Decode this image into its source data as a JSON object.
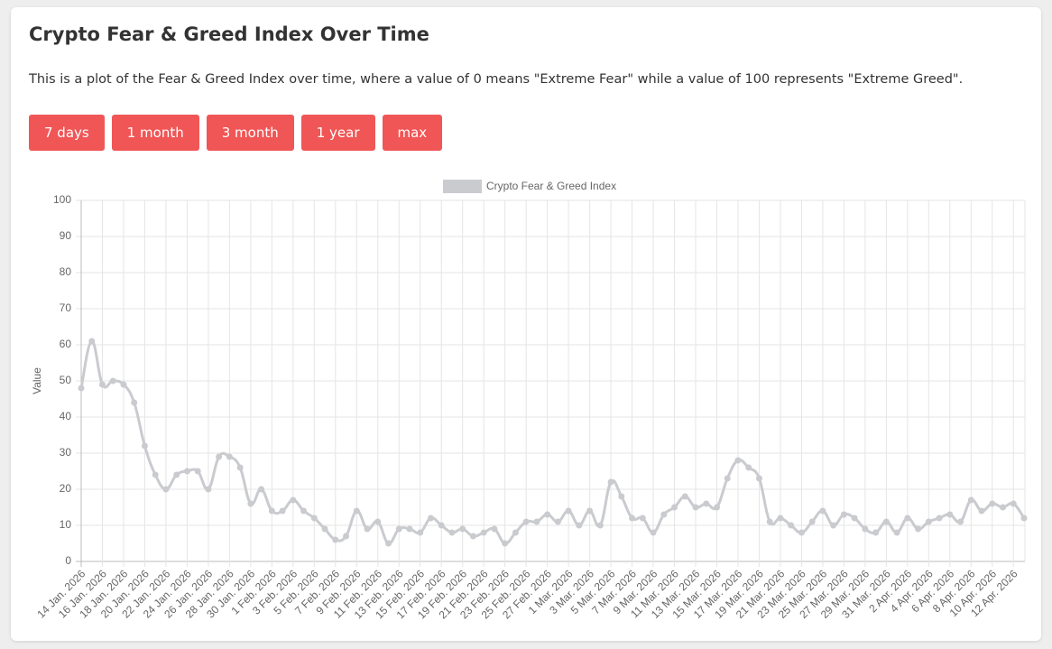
{
  "header": {
    "title": "Crypto Fear & Greed Index Over Time",
    "description": "This is a plot of the Fear & Greed Index over time, where a value of 0 means \"Extreme Fear\" while a value of 100 represents \"Extreme Greed\"."
  },
  "buttons": [
    "7 days",
    "1 month",
    "3 month",
    "1 year",
    "max"
  ],
  "chart_data": {
    "type": "line",
    "y_label": "Value",
    "categories": [
      "14 Jan. 2026",
      null,
      "16 Jan. 2026",
      null,
      "18 Jan. 2026",
      null,
      "20 Jan. 2026",
      null,
      "22 Jan. 2026",
      null,
      "24 Jan. 2026",
      null,
      "26 Jan. 2026",
      null,
      "28 Jan. 2026",
      null,
      "30 Jan. 2026",
      null,
      "1 Feb. 2026",
      null,
      "3 Feb. 2026",
      null,
      "5 Feb. 2026",
      null,
      "7 Feb. 2026",
      null,
      "9 Feb. 2026",
      null,
      "11 Feb. 2026",
      null,
      "13 Feb. 2026",
      null,
      "15 Feb. 2026",
      null,
      "17 Feb. 2026",
      null,
      "19 Feb. 2026",
      null,
      "21 Feb. 2026",
      null,
      "23 Feb. 2026",
      null,
      "25 Feb. 2026",
      null,
      "27 Feb. 2026",
      null,
      "1 Mar. 2026",
      null,
      "3 Mar. 2026",
      null,
      "5 Mar. 2026",
      null,
      "7 Mar. 2026",
      null,
      "9 Mar. 2026",
      null,
      "11 Mar. 2026",
      null,
      "13 Mar. 2026",
      null,
      "15 Mar. 2026",
      null,
      "17 Mar. 2026",
      null,
      "19 Mar. 2026",
      null,
      "21 Mar. 2026",
      null,
      "23 Mar. 2026",
      null,
      "25 Mar. 2026",
      null,
      "27 Mar. 2026",
      null,
      "29 Mar. 2026",
      null,
      "31 Mar. 2026",
      null,
      "2 Apr. 2026",
      null,
      "4 Apr. 2026",
      null,
      "6 Apr. 2026",
      null,
      "8 Apr. 2026",
      null,
      "10 Apr. 2026",
      null,
      "12 Apr. 2026",
      null
    ],
    "series": [
      {
        "name": "Crypto Fear & Greed Index",
        "color": "#c9cbcf",
        "values": [
          48,
          61,
          49,
          50,
          49,
          44,
          32,
          24,
          20,
          24,
          25,
          25,
          20,
          29,
          29,
          26,
          16,
          20,
          14,
          14,
          17,
          14,
          12,
          9,
          6,
          7,
          14,
          9,
          11,
          5,
          9,
          9,
          8,
          12,
          10,
          8,
          9,
          7,
          8,
          9,
          5,
          8,
          11,
          11,
          13,
          11,
          14,
          10,
          14,
          10,
          22,
          18,
          12,
          12,
          8,
          13,
          15,
          18,
          15,
          16,
          15,
          23,
          28,
          26,
          23,
          11,
          12,
          10,
          8,
          11,
          14,
          10,
          13,
          12,
          9,
          8,
          11,
          8,
          12,
          9,
          11,
          12,
          13,
          11,
          17,
          14,
          16,
          15,
          16,
          12
        ]
      }
    ],
    "ylim": [
      0,
      100
    ],
    "yticks": [
      0,
      10,
      20,
      30,
      40,
      50,
      60,
      70,
      80,
      90,
      100
    ],
    "grid": true
  }
}
